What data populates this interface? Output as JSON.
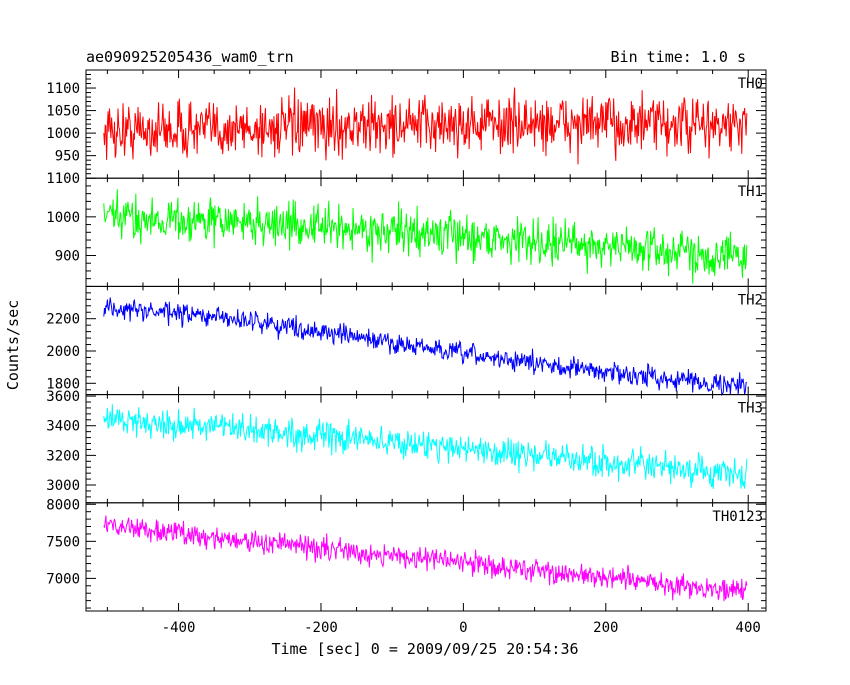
{
  "header": {
    "left_title": "ae090925205436_wam0_trn",
    "right_title": "Bin time: 1.0 s"
  },
  "axes": {
    "xlabel": "Time [sec] 0 = 2009/09/25 20:54:36",
    "ylabel": "Counts/sec"
  },
  "chart_data": {
    "type": "line",
    "title": "ae090925205436_wam0_trn",
    "subtitle": "Bin time: 1.0 s",
    "xlabel": "Time [sec] 0 = 2009/09/25 20:54:36",
    "ylabel": "Counts/sec",
    "xlim": [
      -530,
      425
    ],
    "x_ticks": [
      -400,
      -200,
      0,
      200,
      400
    ],
    "x_range_data": [
      -505,
      398
    ],
    "bin_time_s": 1.0,
    "grid": false,
    "panels": [
      {
        "name": "TH0",
        "color": "#ff0000",
        "ylim": [
          900,
          1140
        ],
        "y_ticks": [
          950,
          1000,
          1050,
          1100
        ],
        "trend": {
          "x": [
            -505,
            -300,
            0,
            200,
            398
          ],
          "y": [
            1005,
            1010,
            1020,
            1020,
            1015
          ]
        },
        "noise_amplitude": 45
      },
      {
        "name": "TH1",
        "color": "#00ff00",
        "ylim": [
          820,
          1100
        ],
        "y_ticks": [
          900,
          1000,
          1100
        ],
        "trend": {
          "x": [
            -505,
            -300,
            0,
            200,
            398
          ],
          "y": [
            1000,
            985,
            950,
            925,
            895
          ]
        },
        "noise_amplitude": 40
      },
      {
        "name": "TH2",
        "color": "#0000ff",
        "ylim": [
          1730,
          2400
        ],
        "y_ticks": [
          1800,
          2000,
          2200
        ],
        "trend": {
          "x": [
            -505,
            -300,
            0,
            200,
            398
          ],
          "y": [
            2270,
            2190,
            1980,
            1870,
            1780
          ]
        },
        "noise_amplitude": 45
      },
      {
        "name": "TH3",
        "color": "#00ffff",
        "ylim": [
          2880,
          3610
        ],
        "y_ticks": [
          3000,
          3200,
          3400,
          3600
        ],
        "trend": {
          "x": [
            -505,
            -300,
            0,
            200,
            398
          ],
          "y": [
            3450,
            3370,
            3250,
            3150,
            3060
          ]
        },
        "noise_amplitude": 70
      },
      {
        "name": "TH0123",
        "color": "#ff00ff",
        "ylim": [
          6560,
          8020
        ],
        "y_ticks": [
          7000,
          7500,
          8000
        ],
        "trend": {
          "x": [
            -505,
            -300,
            0,
            200,
            398
          ],
          "y": [
            7730,
            7500,
            7220,
            7000,
            6820
          ]
        },
        "noise_amplitude": 110
      }
    ]
  }
}
